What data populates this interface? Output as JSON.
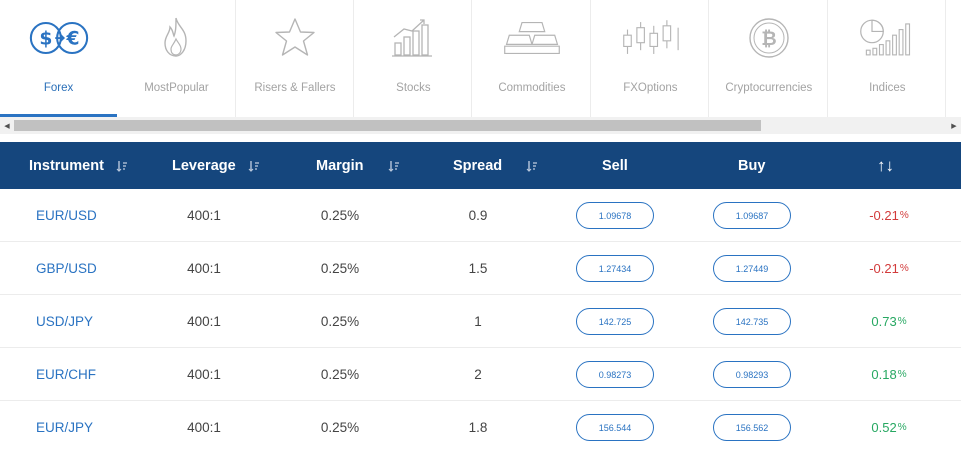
{
  "tabs": [
    {
      "label": "Forex",
      "icon": "dollar-euro-exchange-icon",
      "active": true
    },
    {
      "label": "MostPopular",
      "icon": "flame-icon",
      "active": false
    },
    {
      "label": "Risers & Fallers",
      "icon": "star-icon",
      "active": false
    },
    {
      "label": "Stocks",
      "icon": "bar-chart-growth-icon",
      "active": false
    },
    {
      "label": "Commodities",
      "icon": "gold-bars-icon",
      "active": false
    },
    {
      "label": "FXOptions",
      "icon": "candlestick-icon",
      "active": false
    },
    {
      "label": "Cryptocurrencies",
      "icon": "bitcoin-icon",
      "active": false
    },
    {
      "label": "Indices",
      "icon": "pie-bar-chart-icon",
      "active": false
    }
  ],
  "colors": {
    "accent": "#2a73c2",
    "header_bg": "#15467d",
    "negative": "#d23b3b",
    "positive": "#27a862"
  },
  "table": {
    "headers": {
      "instrument": "Instrument",
      "leverage": "Leverage",
      "margin": "Margin",
      "spread": "Spread",
      "sell": "Sell",
      "buy": "Buy",
      "change": "↑↓"
    },
    "rows": [
      {
        "instrument": "EUR/USD",
        "leverage": "400:1",
        "margin": "0.25%",
        "spread": "0.9",
        "sell": "1.09678",
        "buy": "1.09687",
        "change_value": "-0.21",
        "change_unit": "%",
        "direction": "neg"
      },
      {
        "instrument": "GBP/USD",
        "leverage": "400:1",
        "margin": "0.25%",
        "spread": "1.5",
        "sell": "1.27434",
        "buy": "1.27449",
        "change_value": "-0.21",
        "change_unit": "%",
        "direction": "neg"
      },
      {
        "instrument": "USD/JPY",
        "leverage": "400:1",
        "margin": "0.25%",
        "spread": "1",
        "sell": "142.725",
        "buy": "142.735",
        "change_value": "0.73",
        "change_unit": "%",
        "direction": "pos"
      },
      {
        "instrument": "EUR/CHF",
        "leverage": "400:1",
        "margin": "0.25%",
        "spread": "2",
        "sell": "0.98273",
        "buy": "0.98293",
        "change_value": "0.18",
        "change_unit": "%",
        "direction": "pos"
      },
      {
        "instrument": "EUR/JPY",
        "leverage": "400:1",
        "margin": "0.25%",
        "spread": "1.8",
        "sell": "156.544",
        "buy": "156.562",
        "change_value": "0.52",
        "change_unit": "%",
        "direction": "pos"
      }
    ]
  }
}
